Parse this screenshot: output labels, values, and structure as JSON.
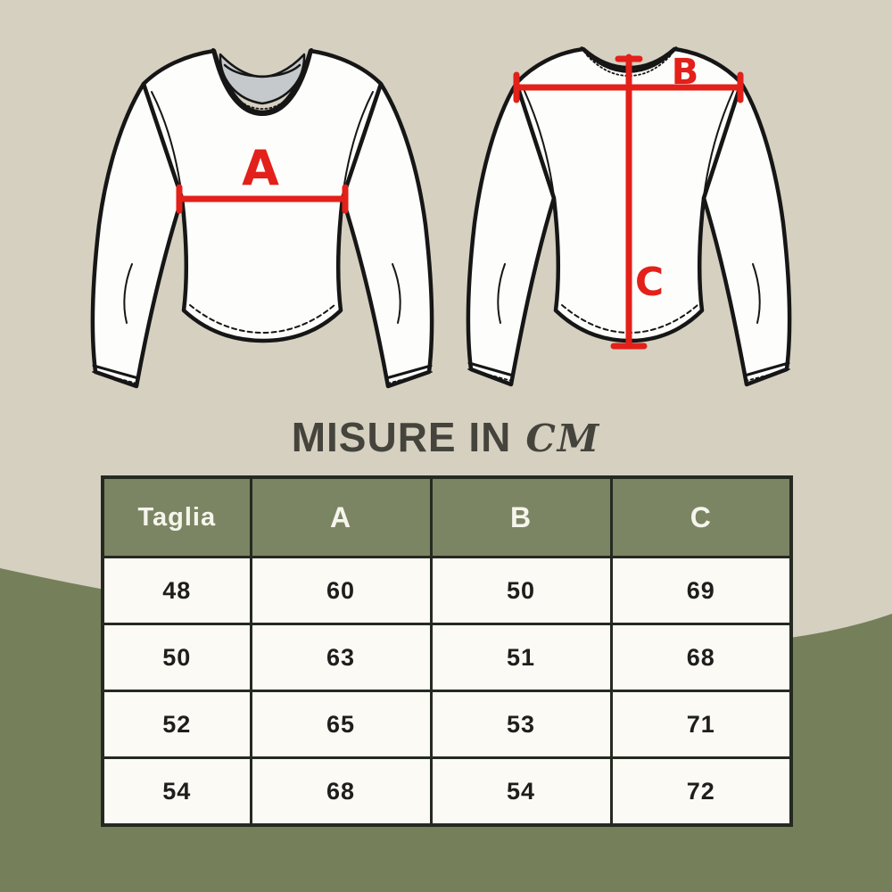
{
  "colors": {
    "background_top": "#d6d0c1",
    "background_bottom_green": "#75805b",
    "table_header_green": "#7b8563",
    "table_border": "#252a20",
    "cell_background": "#fbfaf5",
    "accent_red": "#e32019",
    "title_color": "#45443c",
    "garment_outline": "#161616",
    "collar_inner_gray": "#c5c9cb"
  },
  "title": {
    "text": "MISURE IN",
    "unit": "CM"
  },
  "measurements": {
    "chest_label": "A",
    "shoulder_label": "B",
    "length_label": "C"
  },
  "table": {
    "headers": [
      "Taglia",
      "A",
      "B",
      "C"
    ],
    "rows": [
      [
        "48",
        "60",
        "50",
        "69"
      ],
      [
        "50",
        "63",
        "51",
        "68"
      ],
      [
        "52",
        "65",
        "53",
        "71"
      ],
      [
        "54",
        "68",
        "54",
        "72"
      ]
    ]
  }
}
